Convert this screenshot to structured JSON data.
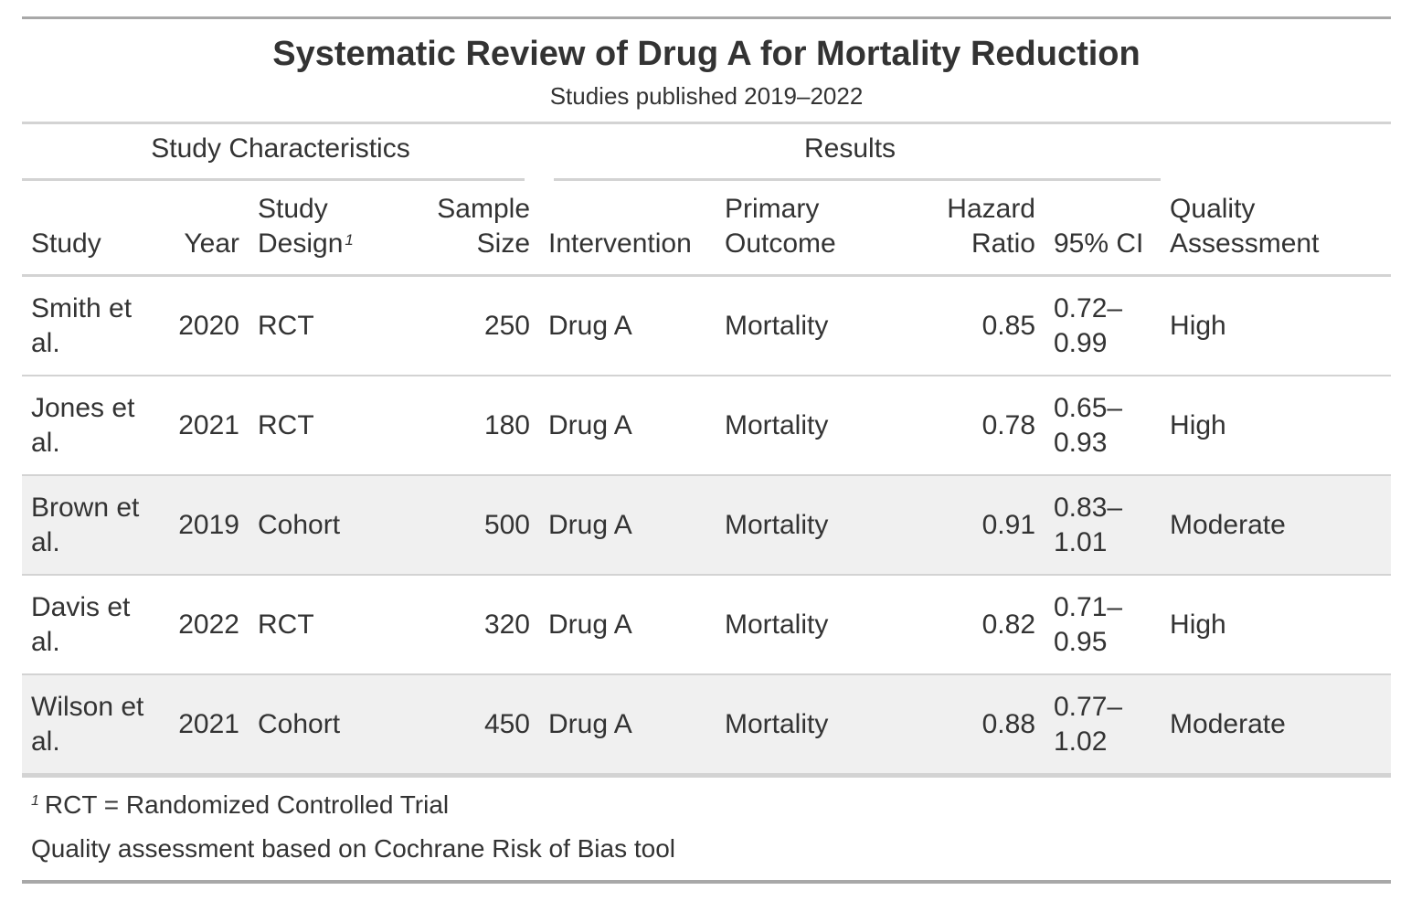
{
  "table": {
    "title": "Systematic Review of Drug A for Mortality Reduction",
    "subtitle": "Studies published 2019–2022",
    "spanners": {
      "study_characteristics": "Study Characteristics",
      "results": "Results"
    },
    "columns": {
      "study": "Study",
      "year": "Year",
      "study_design": "Study Design",
      "study_design_marker": "1",
      "sample_size": "Sample Size",
      "intervention": "Intervention",
      "primary_outcome": "Primary Outcome",
      "hazard_ratio": "Hazard Ratio",
      "ci": "95% CI",
      "quality": "Quality Assessment"
    },
    "rows": [
      {
        "study": "Smith et al.",
        "year": "2020",
        "design": "RCT",
        "sample": "250",
        "intervention": "Drug A",
        "outcome": "Mortality",
        "hr": "0.85",
        "ci": "0.72–0.99",
        "quality": "High"
      },
      {
        "study": "Jones et al.",
        "year": "2021",
        "design": "RCT",
        "sample": "180",
        "intervention": "Drug A",
        "outcome": "Mortality",
        "hr": "0.78",
        "ci": "0.65–0.93",
        "quality": "High"
      },
      {
        "study": "Brown et al.",
        "year": "2019",
        "design": "Cohort",
        "sample": "500",
        "intervention": "Drug A",
        "outcome": "Mortality",
        "hr": "0.91",
        "ci": "0.83–1.01",
        "quality": "Moderate"
      },
      {
        "study": "Davis et al.",
        "year": "2022",
        "design": "RCT",
        "sample": "320",
        "intervention": "Drug A",
        "outcome": "Mortality",
        "hr": "0.82",
        "ci": "0.71–0.95",
        "quality": "High"
      },
      {
        "study": "Wilson et al.",
        "year": "2021",
        "design": "Cohort",
        "sample": "450",
        "intervention": "Drug A",
        "outcome": "Mortality",
        "hr": "0.88",
        "ci": "0.77–1.02",
        "quality": "Moderate"
      }
    ],
    "footnotes": {
      "marker": "1",
      "design_note": "RCT = Randomized Controlled Trial",
      "source_note": "Quality assessment based on Cochrane Risk of Bias tool"
    }
  },
  "colors": {
    "text": "#333333",
    "rule_heavy": "#a8a8a8",
    "rule_light": "#d3d3d3",
    "row_shade": "#f0f0f0"
  }
}
